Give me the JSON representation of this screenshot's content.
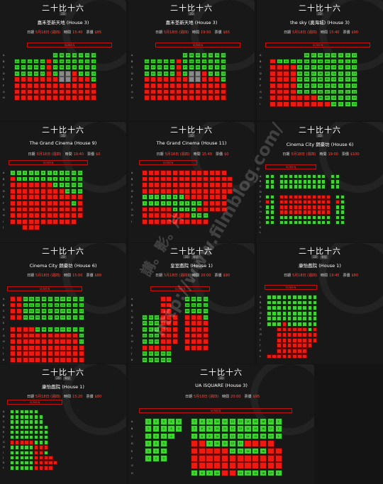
{
  "panels": [
    {
      "title": "二十比十六",
      "formats": [
        "2D"
      ],
      "venue": "嘉禾荃新天地 (House 3)",
      "date_label": "日期",
      "date": "5月18日 (週四)",
      "time_label": "時間",
      "time": "15:40",
      "price_label": "票價",
      "price": "$85",
      "screen_label": "SCREEN",
      "rows": [
        "A",
        "B",
        "C",
        "D",
        "E",
        "F",
        "G",
        "H"
      ]
    },
    {
      "title": "二十比十六",
      "formats": [
        "2D"
      ],
      "venue": "嘉禾荃新天地 (House 3)",
      "date_label": "日期",
      "date": "5月18日 (週四)",
      "time_label": "時間",
      "time": "19:50",
      "price_label": "票價",
      "price": "$65",
      "screen_label": "SCREEN",
      "rows": [
        "A",
        "B",
        "C",
        "D",
        "E",
        "F",
        "G",
        "H"
      ]
    },
    {
      "title": "二十比十六",
      "formats": [
        "2D"
      ],
      "venue": "the sky (奧海城) (House 3)",
      "date_label": "日期",
      "date": "5月18日 (週四)",
      "time_label": "時間",
      "time": "15:40",
      "price_label": "票價",
      "price": "$90",
      "screen_label": "SCREEN",
      "rows": [
        "A",
        "B",
        "C",
        "D",
        "E",
        "F",
        "G",
        "H",
        "I"
      ]
    },
    {
      "title": "二十比十六",
      "formats": [
        "2D"
      ],
      "venue": "The Grand Cinema (House 9)",
      "date_label": "日期",
      "date": "5月18日 (週四)",
      "time_label": "時間",
      "time": "19:40",
      "price_label": "票價",
      "price": "$0",
      "screen_label": "SCREEN",
      "rows": [
        "A",
        "B",
        "C",
        "D",
        "E",
        "F",
        "G",
        "H",
        "I",
        "J"
      ]
    },
    {
      "title": "二十比十六",
      "formats": [
        "2D"
      ],
      "venue": "The Grand Cinema (House 11)",
      "date_label": "日期",
      "date": "5月18日 (週四)",
      "time_label": "時間",
      "time": "15:40",
      "price_label": "票價",
      "price": "$0",
      "screen_label": "SCREEN",
      "rows": [
        "A",
        "B",
        "C",
        "D",
        "E",
        "F",
        "G",
        "H",
        "I"
      ]
    },
    {
      "title": "二十比十六",
      "formats": [
        "2D"
      ],
      "venue": "Cinema City 朗豪坊 (House 6)",
      "date_label": "日期",
      "date": "5月18日 (週四)",
      "time_label": "時間",
      "time": "19:00",
      "price_label": "票價",
      "price": "$100",
      "screen_label": "SCREEN",
      "rows": [
        "A",
        "B",
        "C",
        "D",
        "E",
        "F",
        "G",
        "H",
        "I",
        "J",
        "K",
        "L"
      ]
    },
    {
      "title": "二十比十六",
      "formats": [
        "2D"
      ],
      "venue": "Cinema City 朗豪坊 (House 6)",
      "date_label": "日期",
      "date": "5月18日 (週四)",
      "time_label": "時間",
      "time": "15:00",
      "price_label": "票價",
      "price": "$88",
      "screen_label": "SCREEN",
      "rows": [
        "A",
        "B",
        "C",
        "D",
        "E",
        "F",
        "G",
        "H",
        "I",
        "J",
        "K",
        "L"
      ]
    },
    {
      "title": "二十比十六",
      "formats": [
        "2D",
        "粵語"
      ],
      "venue": "皇室戲院 (House 1)",
      "date_label": "日期",
      "date": "5月18日 (週四)",
      "time_label": "時間",
      "time": "20:00",
      "price_label": "票價",
      "price": "$90",
      "screen_label": "SCREEN",
      "rows": [
        "A",
        "B",
        "C",
        "D",
        "E",
        "F",
        "G",
        "H",
        "I",
        "J",
        "K"
      ]
    },
    {
      "title": "二十比十六",
      "formats": [
        "2D",
        "粵語"
      ],
      "venue": "康怡戲院 (House 1)",
      "date_label": "日期",
      "date": "5月18日 (週四)",
      "time_label": "時間",
      "time": "19:45",
      "price_label": "票價",
      "price": "$80",
      "screen_label": "SCREEN",
      "rows": [
        "A",
        "B",
        "C",
        "D",
        "E",
        "F",
        "G",
        "H",
        "I",
        "J",
        "K",
        "L"
      ]
    },
    {
      "title": "二十比十六",
      "formats": [
        "2D",
        "粵語"
      ],
      "venue": "康怡戲院 (House 1)",
      "date_label": "日期",
      "date": "5月18日 (週四)",
      "time_label": "時間",
      "time": "15:20",
      "price_label": "票價",
      "price": "$80",
      "screen_label": "SCREEN",
      "rows": [
        "A",
        "B",
        "C",
        "D",
        "E",
        "F",
        "G",
        "H",
        "I",
        "J",
        "K",
        "L"
      ]
    },
    {
      "title": "二十比十六",
      "formats": [
        "2D"
      ],
      "venue": "UA iSQUARE (House 3)",
      "date_label": "日期",
      "date": "5月18日 (週四)",
      "time_label": "時間",
      "time": "20:00",
      "price_label": "票價",
      "price": "$95",
      "screen_label": "SCREEN",
      "rows": [
        "A",
        "B",
        "C",
        "D",
        "E",
        "F",
        "G",
        "H"
      ]
    }
  ],
  "seat_numbers": [
    "01",
    "02",
    "03",
    "04",
    "05",
    "06",
    "07",
    "08",
    "09",
    "10",
    "11",
    "12",
    "13"
  ],
  "seat_numbers_b": [
    "1",
    "2",
    "3",
    "4",
    "5",
    "6",
    "7",
    "8",
    "9",
    "10",
    "11",
    "12",
    "13",
    "14",
    "15",
    "16",
    "17"
  ],
  "watermark": "http://www.filmblog.com/",
  "watermark_cn": "講。影。片",
  "colors": {
    "available": "#3cd62e",
    "sold": "#f0190f",
    "blocked": "#8a8a8a",
    "screen": "#ff3b2f",
    "price_accent": "#ff4a3d"
  }
}
